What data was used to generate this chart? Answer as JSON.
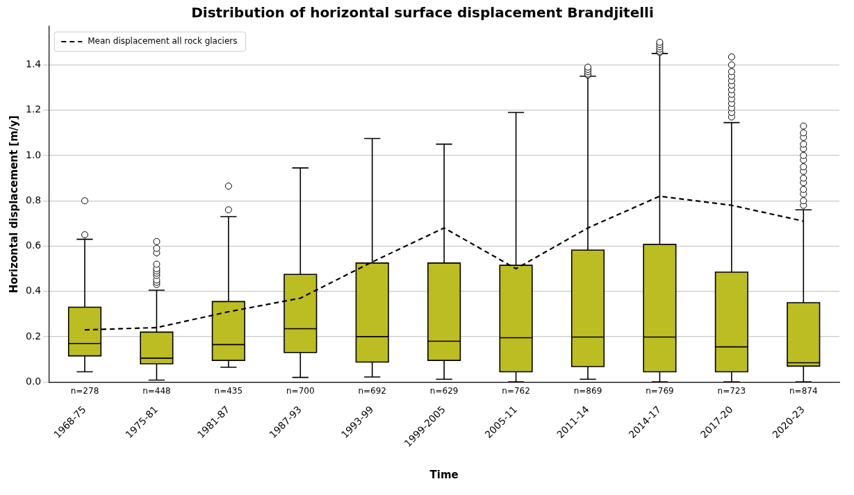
{
  "chart_data": {
    "type": "box",
    "title": "Distribution of horizontal surface displacement Brandjitelli",
    "xlabel": "Time",
    "ylabel": "Horizontal displacement [m/y]",
    "categories": [
      "1968-75",
      "1975-81",
      "1981-87",
      "1987-93",
      "1993-99",
      "1999-2005",
      "2005-11",
      "2011-14",
      "2014-17",
      "2017-20",
      "2020-23"
    ],
    "series": [
      {
        "color": "#bcbd22",
        "boxes": [
          {
            "low": 0.045,
            "q1": 0.115,
            "median": 0.17,
            "q3": 0.33,
            "high": 0.63,
            "outliers": [
              0.65,
              0.8
            ]
          },
          {
            "low": 0.008,
            "q1": 0.08,
            "median": 0.105,
            "q3": 0.22,
            "high": 0.405,
            "outliers": [
              0.43,
              0.44,
              0.45,
              0.47,
              0.48,
              0.49,
              0.5,
              0.52,
              0.57,
              0.59,
              0.62
            ]
          },
          {
            "low": 0.065,
            "q1": 0.095,
            "median": 0.165,
            "q3": 0.355,
            "high": 0.73,
            "outliers": [
              0.76,
              0.865
            ]
          },
          {
            "low": 0.02,
            "q1": 0.13,
            "median": 0.235,
            "q3": 0.475,
            "high": 0.945
          },
          {
            "low": 0.022,
            "q1": 0.088,
            "median": 0.2,
            "q3": 0.525,
            "high": 1.075
          },
          {
            "low": 0.012,
            "q1": 0.095,
            "median": 0.18,
            "q3": 0.525,
            "high": 1.05
          },
          {
            "low": 0.0,
            "q1": 0.045,
            "median": 0.195,
            "q3": 0.515,
            "high": 1.19
          },
          {
            "low": 0.012,
            "q1": 0.068,
            "median": 0.198,
            "q3": 0.582,
            "high": 1.35,
            "outliers": [
              1.355,
              1.36,
              1.37,
              1.38,
              1.39
            ]
          },
          {
            "low": 0.0,
            "q1": 0.045,
            "median": 0.198,
            "q3": 0.607,
            "high": 1.45,
            "outliers": [
              1.455,
              1.46,
              1.47,
              1.48,
              1.49,
              1.5
            ]
          },
          {
            "low": 0.0,
            "q1": 0.045,
            "median": 0.155,
            "q3": 0.485,
            "high": 1.145,
            "outliers": [
              1.17,
              1.19,
              1.21,
              1.23,
              1.25,
              1.27,
              1.29,
              1.31,
              1.33,
              1.35,
              1.37,
              1.4,
              1.435
            ]
          },
          {
            "low": 0.0,
            "q1": 0.07,
            "median": 0.085,
            "q3": 0.35,
            "high": 0.76,
            "outliers": [
              0.78,
              0.8,
              0.83,
              0.85,
              0.88,
              0.9,
              0.93,
              0.95,
              0.98,
              1.0,
              1.03,
              1.05,
              1.08,
              1.1,
              1.13
            ]
          }
        ]
      },
      {
        "type": "line",
        "name": "Mean displacement all rock glaciers",
        "color": "#000000",
        "line_style": "dashed",
        "marker": "none",
        "values": [
          0.23,
          0.24,
          0.31,
          0.37,
          0.53,
          0.68,
          0.5,
          0.68,
          0.82,
          0.78,
          0.71
        ]
      }
    ],
    "ylim": [
      0,
      1.57
    ],
    "yticks": [
      {
        "value": 0,
        "label": "0.0"
      },
      {
        "value": 0.2,
        "label": "0.2"
      },
      {
        "value": 0.4,
        "label": "0.4"
      },
      {
        "value": 0.6,
        "label": "0.6"
      },
      {
        "value": 0.8,
        "label": "0.8"
      },
      {
        "value": 1.0,
        "label": "1.0"
      },
      {
        "value": 1.2,
        "label": "1.2"
      },
      {
        "value": 1.4,
        "label": "1.4"
      }
    ],
    "grid": "y",
    "legend": "top left",
    "annotations": [
      "n=278",
      "n=448",
      "n=435",
      "n=700",
      "n=692",
      "n=629",
      "n=762",
      "n=869",
      "n=769",
      "n=723",
      "n=874"
    ]
  }
}
